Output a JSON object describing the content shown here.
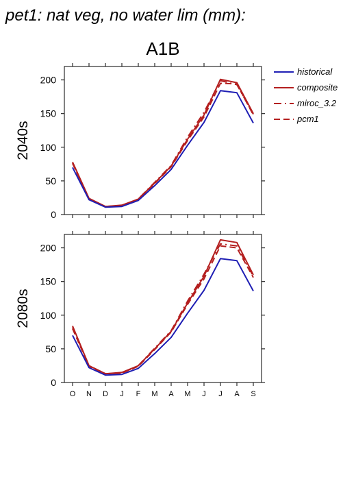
{
  "title": "pet1: nat veg, no water lim (mm):",
  "scenario": "A1B",
  "colors": {
    "historical": "#1f1fb4",
    "future": "#b41f1f"
  },
  "legend": [
    {
      "name": "historical",
      "color": "#1f1fb4",
      "dash": "solid"
    },
    {
      "name": "composite",
      "color": "#b41f1f",
      "dash": "solid"
    },
    {
      "name": "miroc_3.2",
      "color": "#b41f1f",
      "dash": "longdash-dot"
    },
    {
      "name": "pcm1",
      "color": "#b41f1f",
      "dash": "dash"
    }
  ],
  "chart_data": [
    {
      "type": "line",
      "row_label": "2040s",
      "categories": [
        "O",
        "N",
        "D",
        "J",
        "F",
        "M",
        "A",
        "M",
        "J",
        "J",
        "A",
        "S"
      ],
      "ylim": [
        0,
        220
      ],
      "yticks": [
        "0",
        "50",
        "100",
        "150",
        "200"
      ],
      "series": [
        {
          "name": "historical",
          "values": [
            70,
            22,
            11,
            12,
            21,
            43,
            67,
            103,
            137,
            184,
            181,
            136
          ]
        },
        {
          "name": "composite",
          "values": [
            78,
            24,
            12,
            14,
            23,
            47,
            72,
            112,
            148,
            201,
            196,
            150
          ]
        },
        {
          "name": "miroc_3.2",
          "values": [
            77,
            23,
            12,
            13,
            23,
            48,
            73,
            115,
            152,
            199,
            193,
            149
          ]
        },
        {
          "name": "pcm1",
          "values": [
            76,
            23,
            12,
            13,
            22,
            46,
            71,
            110,
            145,
            195,
            194,
            148
          ]
        }
      ]
    },
    {
      "type": "line",
      "row_label": "2080s",
      "categories": [
        "O",
        "N",
        "D",
        "J",
        "F",
        "M",
        "A",
        "M",
        "J",
        "J",
        "A",
        "S"
      ],
      "ylim": [
        0,
        220
      ],
      "yticks": [
        "0",
        "50",
        "100",
        "150",
        "200"
      ],
      "series": [
        {
          "name": "historical",
          "values": [
            70,
            22,
            11,
            12,
            21,
            43,
            67,
            103,
            137,
            184,
            181,
            136
          ]
        },
        {
          "name": "composite",
          "values": [
            84,
            25,
            13,
            15,
            25,
            50,
            76,
            118,
            158,
            212,
            208,
            160
          ]
        },
        {
          "name": "miroc_3.2",
          "values": [
            82,
            25,
            13,
            14,
            25,
            51,
            77,
            121,
            161,
            206,
            203,
            158
          ]
        },
        {
          "name": "pcm1",
          "values": [
            80,
            24,
            13,
            14,
            24,
            49,
            75,
            116,
            154,
            203,
            200,
            156
          ]
        }
      ]
    }
  ]
}
